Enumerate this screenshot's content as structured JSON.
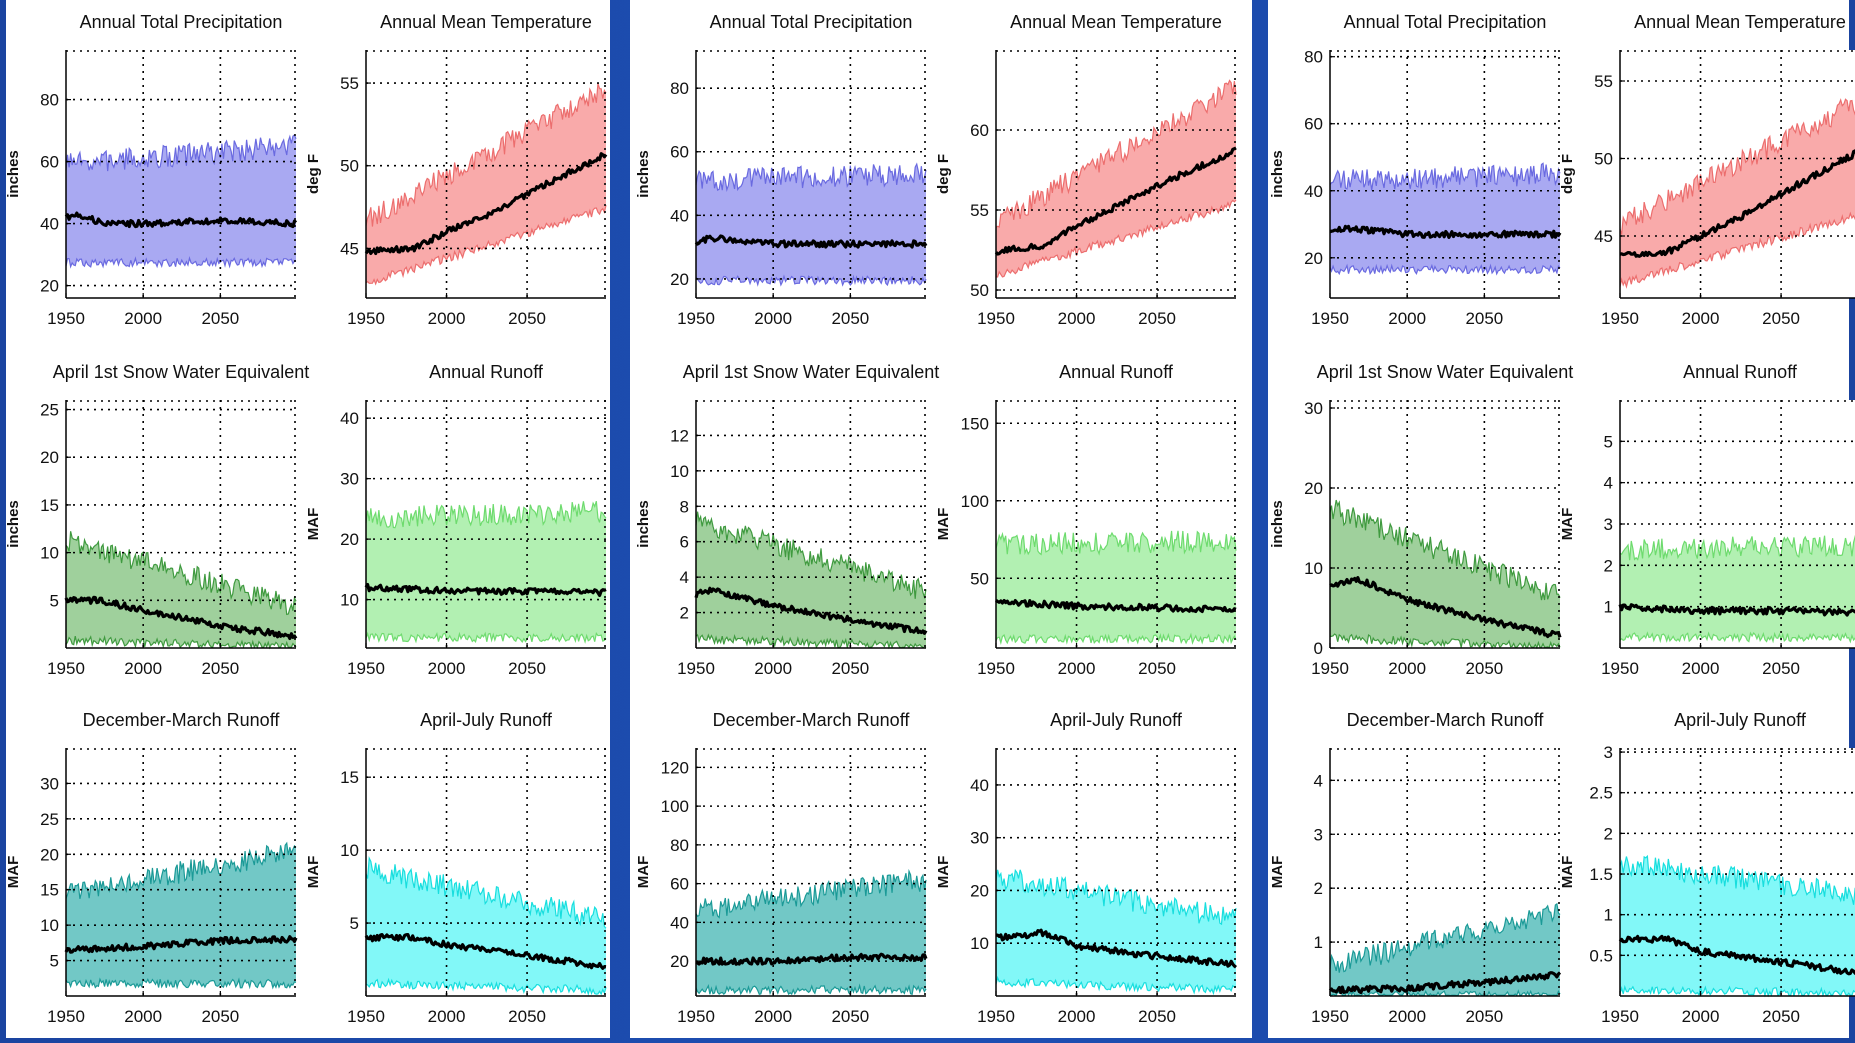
{
  "chart_data": [
    {
      "panel": 1,
      "charts": [
        {
          "type": "area",
          "title": "Annual Total Precipitation",
          "ylabel": "inches",
          "xlim": [
            1950,
            2099
          ],
          "ylim": [
            16,
            96
          ],
          "yticks": [
            20,
            40,
            60,
            80
          ],
          "xticks": [
            1950,
            2000,
            2050
          ],
          "color": "blue",
          "band": {
            "low": [
              28,
              28
            ],
            "high": [
              58,
              64
            ]
          },
          "median": [
            {
              "x": 1950,
              "y": 42
            },
            {
              "x": 1958,
              "y": 43
            },
            {
              "x": 1975,
              "y": 40
            },
            {
              "x": 2000,
              "y": 40
            },
            {
              "x": 2050,
              "y": 41
            },
            {
              "x": 2099,
              "y": 40
            }
          ]
        },
        {
          "type": "area",
          "title": "Annual Mean Temperature",
          "ylabel": "deg F",
          "xlim": [
            1950,
            2099
          ],
          "ylim": [
            42,
            57
          ],
          "yticks": [
            45,
            50,
            55
          ],
          "xticks": [
            1950,
            2000,
            2050
          ],
          "color": "red",
          "band": {
            "low": [
              43,
              47.5
            ],
            "high": [
              46.5,
              54.5
            ]
          },
          "median": [
            {
              "x": 1950,
              "y": 44.8
            },
            {
              "x": 1980,
              "y": 45
            },
            {
              "x": 2000,
              "y": 46
            },
            {
              "x": 2030,
              "y": 47.2
            },
            {
              "x": 2060,
              "y": 48.8
            },
            {
              "x": 2099,
              "y": 50.7
            }
          ]
        },
        {
          "type": "area",
          "title": "April 1st Snow Water Equivalent",
          "ylabel": "inches",
          "xlim": [
            1950,
            2099
          ],
          "ylim": [
            0,
            26
          ],
          "yticks": [
            5,
            10,
            15,
            20,
            25
          ],
          "xticks": [
            1950,
            2000,
            2050
          ],
          "color": "green",
          "band": {
            "low": [
              1,
              0.3
            ],
            "high": [
              11,
              4
            ]
          },
          "median": [
            {
              "x": 1950,
              "y": 5
            },
            {
              "x": 1970,
              "y": 5
            },
            {
              "x": 2000,
              "y": 4
            },
            {
              "x": 2050,
              "y": 2.3
            },
            {
              "x": 2099,
              "y": 1.2
            }
          ]
        },
        {
          "type": "area",
          "title": "Annual Runoff",
          "ylabel": "MAF",
          "xlim": [
            1950,
            2099
          ],
          "ylim": [
            2,
            43
          ],
          "yticks": [
            10,
            20,
            30,
            40
          ],
          "xticks": [
            1950,
            2000,
            2050
          ],
          "color": "lightgreen",
          "band": {
            "low": [
              4,
              4
            ],
            "high": [
              23,
              24
            ]
          },
          "median": [
            {
              "x": 1950,
              "y": 12
            },
            {
              "x": 2000,
              "y": 11.5
            },
            {
              "x": 2050,
              "y": 11.3
            },
            {
              "x": 2099,
              "y": 11.2
            }
          ]
        },
        {
          "type": "area",
          "title": "December-March Runoff",
          "ylabel": "MAF",
          "xlim": [
            1950,
            2099
          ],
          "ylim": [
            0,
            35
          ],
          "yticks": [
            5,
            10,
            15,
            20,
            25,
            30
          ],
          "xticks": [
            1950,
            2000,
            2050
          ],
          "color": "teal",
          "band": {
            "low": [
              2,
              2
            ],
            "high": [
              14,
              20
            ]
          },
          "median": [
            {
              "x": 1950,
              "y": 6.5
            },
            {
              "x": 2000,
              "y": 7
            },
            {
              "x": 2050,
              "y": 7.8
            },
            {
              "x": 2099,
              "y": 8
            }
          ]
        },
        {
          "type": "area",
          "title": "April-July Runoff",
          "ylabel": "MAF",
          "xlim": [
            1950,
            2099
          ],
          "ylim": [
            0,
            17
          ],
          "yticks": [
            5,
            10,
            15
          ],
          "xticks": [
            1950,
            2000,
            2050
          ],
          "color": "cyan",
          "band": {
            "low": [
              1,
              0.5
            ],
            "high": [
              8.5,
              5
            ]
          },
          "median": [
            {
              "x": 1950,
              "y": 4
            },
            {
              "x": 1980,
              "y": 4
            },
            {
              "x": 2000,
              "y": 3.5
            },
            {
              "x": 2050,
              "y": 2.8
            },
            {
              "x": 2099,
              "y": 2
            }
          ]
        }
      ]
    },
    {
      "panel": 2,
      "charts": [
        {
          "type": "area",
          "title": "Annual Total Precipitation",
          "ylabel": "inches",
          "xlim": [
            1950,
            2099
          ],
          "ylim": [
            14,
            92
          ],
          "yticks": [
            20,
            40,
            60,
            80
          ],
          "xticks": [
            1950,
            2000,
            2050
          ],
          "color": "blue",
          "band": {
            "low": [
              20,
              20
            ],
            "high": [
              50,
              52
            ]
          },
          "median": [
            {
              "x": 1950,
              "y": 31
            },
            {
              "x": 1960,
              "y": 33
            },
            {
              "x": 2000,
              "y": 31
            },
            {
              "x": 2050,
              "y": 31
            },
            {
              "x": 2099,
              "y": 31
            }
          ]
        },
        {
          "type": "area",
          "title": "Annual Mean Temperature",
          "ylabel": "deg F",
          "xlim": [
            1950,
            2099
          ],
          "ylim": [
            49.5,
            65
          ],
          "yticks": [
            50,
            55,
            60
          ],
          "xticks": [
            1950,
            2000,
            2050
          ],
          "color": "red",
          "band": {
            "low": [
              51,
              55.5
            ],
            "high": [
              54,
              62.5
            ]
          },
          "median": [
            {
              "x": 1950,
              "y": 52.4
            },
            {
              "x": 1980,
              "y": 52.8
            },
            {
              "x": 2000,
              "y": 54
            },
            {
              "x": 2030,
              "y": 55.5
            },
            {
              "x": 2060,
              "y": 57
            },
            {
              "x": 2099,
              "y": 58.7
            }
          ]
        },
        {
          "type": "area",
          "title": "April 1st Snow Water Equivalent",
          "ylabel": "inches",
          "xlim": [
            1950,
            2099
          ],
          "ylim": [
            0,
            14
          ],
          "yticks": [
            2,
            4,
            6,
            8,
            10,
            12
          ],
          "xticks": [
            1950,
            2000,
            2050
          ],
          "color": "green",
          "band": {
            "low": [
              0.6,
              0.2
            ],
            "high": [
              7,
              3
            ]
          },
          "median": [
            {
              "x": 1950,
              "y": 3
            },
            {
              "x": 1960,
              "y": 3.3
            },
            {
              "x": 2000,
              "y": 2.4
            },
            {
              "x": 2050,
              "y": 1.6
            },
            {
              "x": 2099,
              "y": 0.9
            }
          ]
        },
        {
          "type": "area",
          "title": "Annual Runoff",
          "ylabel": "MAF",
          "xlim": [
            1950,
            2099
          ],
          "ylim": [
            5,
            165
          ],
          "yticks": [
            50,
            100,
            150
          ],
          "xticks": [
            1950,
            2000,
            2050
          ],
          "color": "lightgreen",
          "band": {
            "low": [
              12,
              12
            ],
            "high": [
              70,
              72
            ]
          },
          "median": [
            {
              "x": 1950,
              "y": 35
            },
            {
              "x": 2000,
              "y": 32
            },
            {
              "x": 2050,
              "y": 31
            },
            {
              "x": 2099,
              "y": 30
            }
          ]
        },
        {
          "type": "area",
          "title": "December-March Runoff",
          "ylabel": "MAF",
          "xlim": [
            1950,
            2099
          ],
          "ylim": [
            2,
            130
          ],
          "yticks": [
            20,
            40,
            60,
            80,
            100,
            120
          ],
          "xticks": [
            1950,
            2000,
            2050
          ],
          "color": "teal",
          "band": {
            "low": [
              6,
              6
            ],
            "high": [
              45,
              60
            ]
          },
          "median": [
            {
              "x": 1950,
              "y": 20
            },
            {
              "x": 2000,
              "y": 20
            },
            {
              "x": 2050,
              "y": 22
            },
            {
              "x": 2099,
              "y": 22
            }
          ]
        },
        {
          "type": "area",
          "title": "April-July Runoff",
          "ylabel": "MAF",
          "xlim": [
            1950,
            2099
          ],
          "ylim": [
            0,
            47
          ],
          "yticks": [
            10,
            20,
            30,
            40
          ],
          "xticks": [
            1950,
            2000,
            2050
          ],
          "color": "cyan",
          "band": {
            "low": [
              3,
              1.5
            ],
            "high": [
              22,
              14
            ]
          },
          "median": [
            {
              "x": 1950,
              "y": 11
            },
            {
              "x": 1980,
              "y": 12
            },
            {
              "x": 2000,
              "y": 9.5
            },
            {
              "x": 2050,
              "y": 7.5
            },
            {
              "x": 2099,
              "y": 6
            }
          ]
        }
      ]
    },
    {
      "panel": 3,
      "charts": [
        {
          "type": "area",
          "title": "Annual Total Precipitation",
          "ylabel": "inches",
          "xlim": [
            1950,
            2099
          ],
          "ylim": [
            8,
            82
          ],
          "yticks": [
            20,
            40,
            60,
            80
          ],
          "xticks": [
            1950,
            2000,
            2050
          ],
          "color": "blue",
          "band": {
            "low": [
              17,
              17
            ],
            "high": [
              42,
              44
            ]
          },
          "median": [
            {
              "x": 1950,
              "y": 27
            },
            {
              "x": 1960,
              "y": 29
            },
            {
              "x": 2000,
              "y": 27
            },
            {
              "x": 2050,
              "y": 27
            },
            {
              "x": 2099,
              "y": 27
            }
          ]
        },
        {
          "type": "area",
          "title": "Annual Mean Temperature",
          "ylabel": "deg F",
          "xlim": [
            1950,
            2099
          ],
          "ylim": [
            41,
            57
          ],
          "yticks": [
            45,
            50,
            55
          ],
          "xticks": [
            1950,
            2000,
            2050
          ],
          "color": "red",
          "band": {
            "low": [
              42,
              46.5
            ],
            "high": [
              45.5,
              53.5
            ]
          },
          "median": [
            {
              "x": 1950,
              "y": 43.8
            },
            {
              "x": 1980,
              "y": 44
            },
            {
              "x": 2000,
              "y": 45
            },
            {
              "x": 2030,
              "y": 46.5
            },
            {
              "x": 2060,
              "y": 48.3
            },
            {
              "x": 2099,
              "y": 50.5
            }
          ]
        },
        {
          "type": "area",
          "title": "April 1st Snow Water Equivalent",
          "ylabel": "inches",
          "xlim": [
            1950,
            2099
          ],
          "ylim": [
            0,
            31
          ],
          "yticks": [
            0,
            10,
            20,
            30
          ],
          "xticks": [
            1950,
            2000,
            2050
          ],
          "color": "green",
          "band": {
            "low": [
              1.5,
              0.3
            ],
            "high": [
              17,
              6
            ]
          },
          "median": [
            {
              "x": 1950,
              "y": 8
            },
            {
              "x": 1970,
              "y": 8.5
            },
            {
              "x": 2000,
              "y": 6
            },
            {
              "x": 2050,
              "y": 3.5
            },
            {
              "x": 2099,
              "y": 1.5
            }
          ]
        },
        {
          "type": "area",
          "title": "Annual Runoff",
          "ylabel": "MAF",
          "xlim": [
            1950,
            2099
          ],
          "ylim": [
            0,
            6
          ],
          "yticks": [
            1,
            2,
            3,
            4,
            5
          ],
          "xticks": [
            1950,
            2000,
            2050
          ],
          "color": "lightgreen",
          "band": {
            "low": [
              0.3,
              0.3
            ],
            "high": [
              2.3,
              2.4
            ]
          },
          "median": [
            {
              "x": 1950,
              "y": 1
            },
            {
              "x": 2000,
              "y": 0.9
            },
            {
              "x": 2050,
              "y": 0.9
            },
            {
              "x": 2099,
              "y": 0.85
            }
          ]
        },
        {
          "type": "area",
          "title": "December-March Runoff",
          "ylabel": "MAF",
          "xlim": [
            1950,
            2099
          ],
          "ylim": [
            0,
            4.6
          ],
          "yticks": [
            1,
            2,
            3,
            4
          ],
          "xticks": [
            1950,
            2000,
            2050
          ],
          "color": "teal",
          "band": {
            "low": [
              0.05,
              0.05
            ],
            "high": [
              0.5,
              1.5
            ]
          },
          "median": [
            {
              "x": 1950,
              "y": 0.1
            },
            {
              "x": 2000,
              "y": 0.15
            },
            {
              "x": 2050,
              "y": 0.25
            },
            {
              "x": 2099,
              "y": 0.4
            }
          ]
        },
        {
          "type": "area",
          "title": "April-July Runoff",
          "ylabel": "MAF",
          "xlim": [
            1950,
            2099
          ],
          "ylim": [
            0,
            3.05
          ],
          "yticks": [
            0.5,
            1,
            1.5,
            2,
            2.5,
            3
          ],
          "xticks": [
            1950,
            2000,
            2050
          ],
          "color": "cyan",
          "band": {
            "low": [
              0.1,
              0.05
            ],
            "high": [
              1.6,
              1.2
            ]
          },
          "median": [
            {
              "x": 1950,
              "y": 0.7
            },
            {
              "x": 1980,
              "y": 0.7
            },
            {
              "x": 2000,
              "y": 0.55
            },
            {
              "x": 2050,
              "y": 0.42
            },
            {
              "x": 2099,
              "y": 0.28
            }
          ]
        }
      ]
    }
  ]
}
